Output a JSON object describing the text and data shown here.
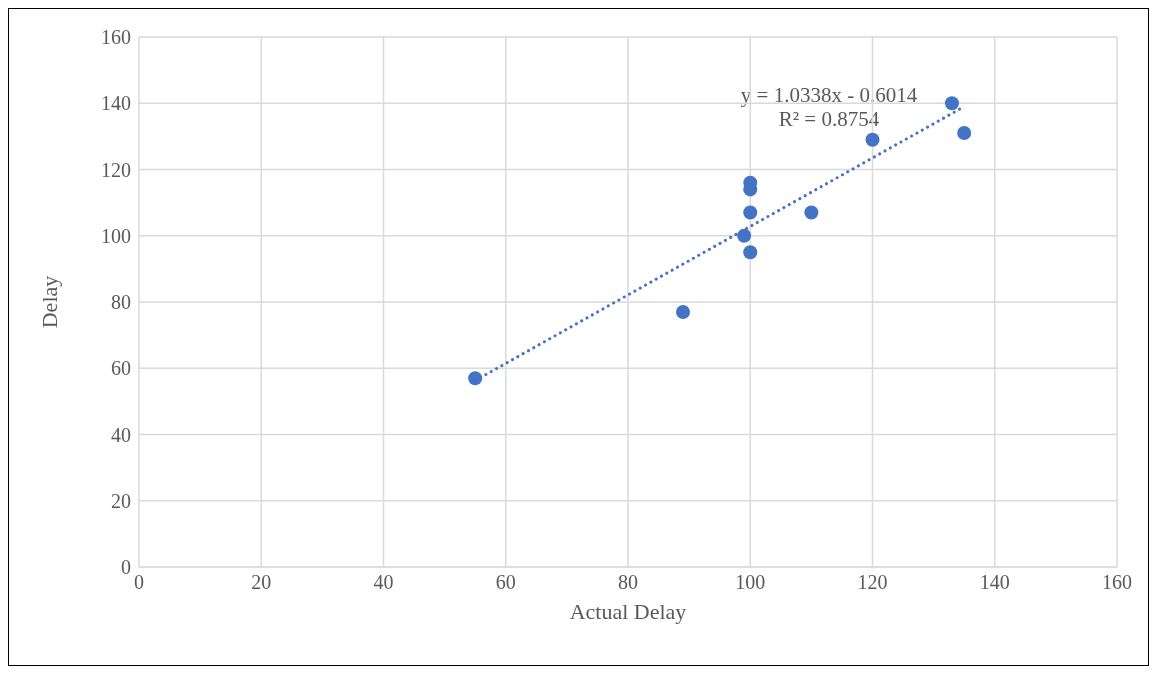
{
  "chart_data": {
    "type": "scatter",
    "xlabel": "Actual Delay",
    "ylabel": "Delay",
    "xlim": [
      0,
      160
    ],
    "ylim": [
      0,
      160
    ],
    "xticks": [
      0,
      20,
      40,
      60,
      80,
      100,
      120,
      140,
      160
    ],
    "yticks": [
      0,
      20,
      40,
      60,
      80,
      100,
      120,
      140,
      160
    ],
    "grid": true,
    "marker": "circle",
    "series": [
      {
        "color": "#4472c4",
        "x": [
          55,
          89,
          99,
          100,
          100,
          100,
          100,
          110,
          120,
          133,
          135
        ],
        "values": [
          57,
          77,
          100,
          95,
          107,
          114,
          116,
          107,
          129,
          140,
          131
        ]
      },
      {
        "type": "line",
        "color": "#4472c4",
        "line_style": "dotted",
        "marker": "none",
        "x": [
          55,
          135
        ],
        "values": [
          56.3,
          139
        ]
      }
    ],
    "annotations": [
      "y = 1.0338x - 0.6014",
      "R² = 0.8754"
    ]
  }
}
